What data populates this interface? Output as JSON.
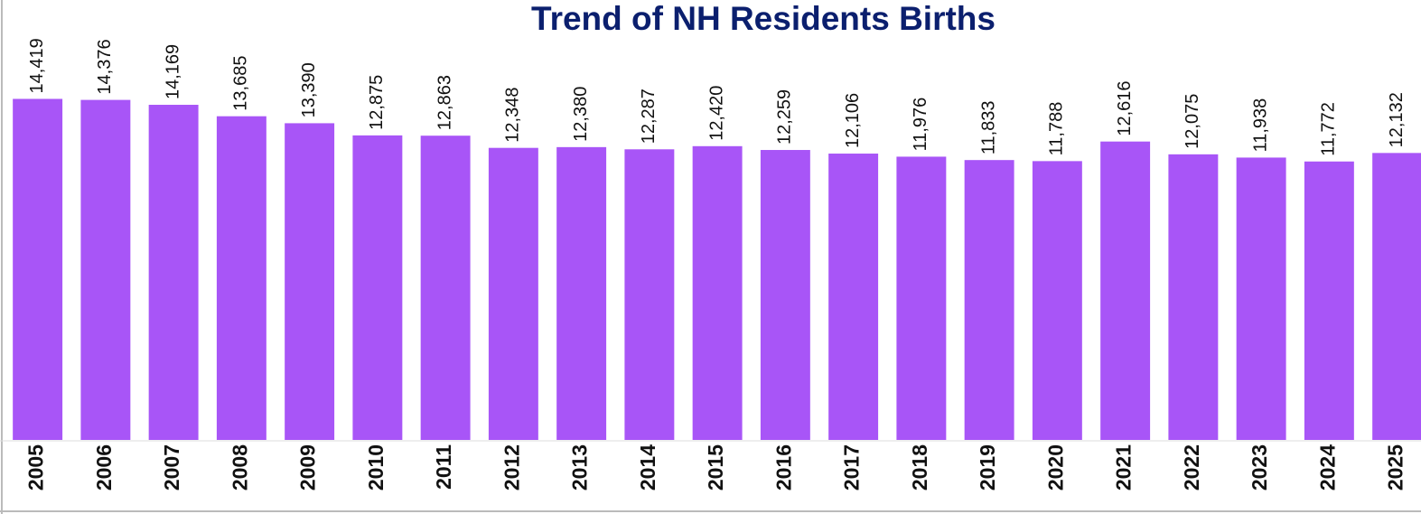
{
  "chart_data": {
    "type": "bar",
    "title": "Trend of NH Residents Births",
    "categories": [
      "2005",
      "2006",
      "2007",
      "2008",
      "2009",
      "2010",
      "2011",
      "2012",
      "2013",
      "2014",
      "2015",
      "2016",
      "2017",
      "2018",
      "2019",
      "2020",
      "2021",
      "2022",
      "2023",
      "2024",
      "2025"
    ],
    "values": [
      14419,
      14376,
      14169,
      13685,
      13390,
      12875,
      12863,
      12348,
      12380,
      12287,
      12420,
      12259,
      12106,
      11976,
      11833,
      11788,
      12616,
      12075,
      11938,
      11772,
      12132
    ],
    "value_labels": [
      "14,419",
      "14,376",
      "14,169",
      "13,685",
      "13,390",
      "12,875",
      "12,863",
      "12,348",
      "12,380",
      "12,287",
      "12,420",
      "12,259",
      "12,106",
      "11,976",
      "11,833",
      "11,788",
      "12,616",
      "12,075",
      "11,938",
      "11,772",
      "12,132"
    ],
    "color": "#a855f7",
    "ylim": [
      0,
      18600
    ]
  }
}
